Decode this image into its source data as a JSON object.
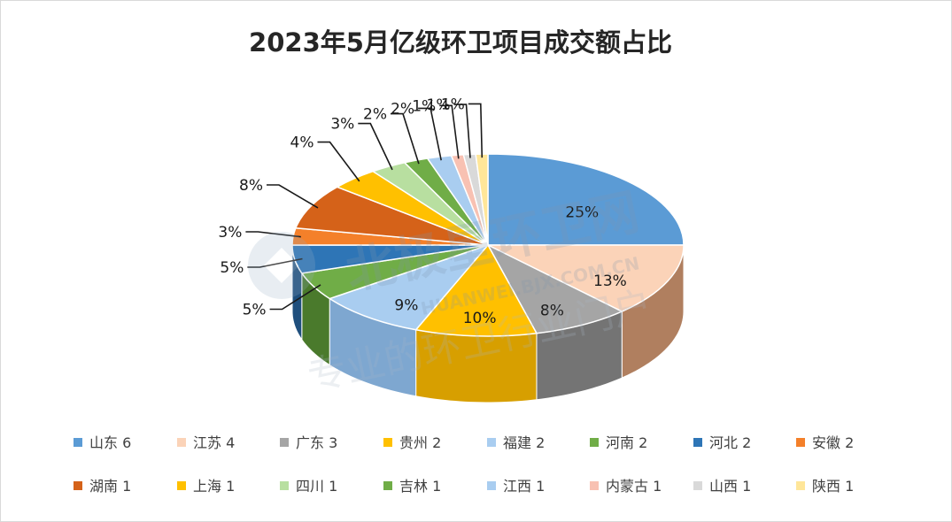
{
  "chart_data": {
    "type": "pie",
    "title": "2023年5月亿级环卫项目成交额占比",
    "slices": [
      {
        "label": "山东",
        "value": 6,
        "percent_label": "25%",
        "color": "#5b9bd5",
        "side": "#3f79b4"
      },
      {
        "label": "江苏",
        "value": 4,
        "percent_label": "13%",
        "color": "#fbd3b8",
        "side": "#b07f5f"
      },
      {
        "label": "广东",
        "value": 3,
        "percent_label": "8%",
        "color": "#a5a5a5",
        "side": "#747474"
      },
      {
        "label": "贵州",
        "value": 2,
        "percent_label": "10%",
        "color": "#ffc000",
        "side": "#d79f00"
      },
      {
        "label": "福建",
        "value": 2,
        "percent_label": "9%",
        "color": "#a9cdf0",
        "side": "#7ea7d0"
      },
      {
        "label": "河南",
        "value": 2,
        "percent_label": "5%",
        "color": "#70ad47",
        "side": "#4a7a2c"
      },
      {
        "label": "河北",
        "value": 2,
        "percent_label": "5%",
        "color": "#2e75b6",
        "side": "#1f4f7d"
      },
      {
        "label": "安徽",
        "value": 2,
        "percent_label": "3%",
        "color": "#f4802a",
        "side": "#b35a18"
      },
      {
        "label": "湖南",
        "value": 1,
        "percent_label": "8%",
        "color": "#d56219",
        "side": "#9a4410"
      },
      {
        "label": "上海",
        "value": 1,
        "percent_label": "4%",
        "color": "#ffc000",
        "side": "#d79f00"
      },
      {
        "label": "四川",
        "value": 1,
        "percent_label": "3%",
        "color": "#b8dfa0",
        "side": "#8cb576"
      },
      {
        "label": "吉林",
        "value": 1,
        "percent_label": "2%",
        "color": "#70ad47",
        "side": "#4a7a2c"
      },
      {
        "label": "江西",
        "value": 1,
        "percent_label": "2%",
        "color": "#a9cdf0",
        "side": "#7ea7d0"
      },
      {
        "label": "内蒙古",
        "value": 1,
        "percent_label": "1%",
        "color": "#f8c1b2",
        "side": "#c08e80"
      },
      {
        "label": "山西",
        "value": 1,
        "percent_label": "1%",
        "color": "#d9d9d9",
        "side": "#a6a6a6"
      },
      {
        "label": "陕西",
        "value": 1,
        "percent_label": "1%",
        "color": "#ffe699",
        "side": "#d4bd6c"
      }
    ],
    "legend_position": "bottom",
    "style": "3d-pie"
  },
  "watermark": {
    "main": "北极星环卫网",
    "sub": "专业的环卫行业门户",
    "latin": "HUANWEI.BJX.COM.CN"
  }
}
